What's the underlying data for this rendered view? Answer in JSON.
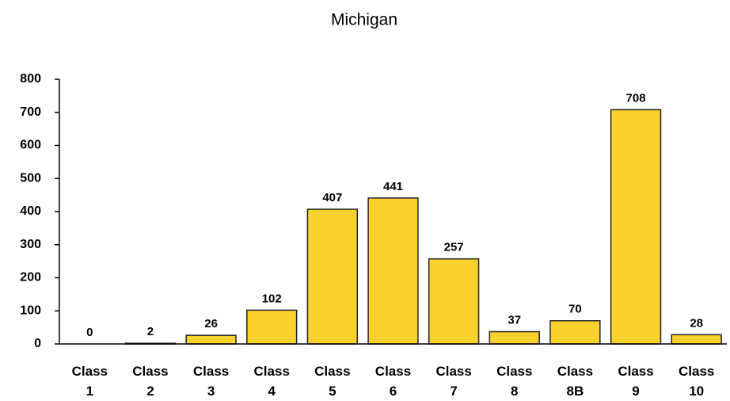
{
  "chart_data": {
    "type": "bar",
    "title": "Michigan",
    "categories": [
      "Class 1",
      "Class 2",
      "Class 3",
      "Class 4",
      "Class 5",
      "Class 6",
      "Class 7",
      "Class 8",
      "Class 8B",
      "Class 9",
      "Class 10"
    ],
    "values": [
      0,
      2,
      26,
      102,
      407,
      441,
      257,
      37,
      70,
      708,
      28
    ],
    "color": "#f9d22e",
    "ylim": [
      0,
      800
    ],
    "yticks": [
      0,
      100,
      200,
      300,
      400,
      500,
      600,
      700,
      800
    ],
    "grid": false
  }
}
